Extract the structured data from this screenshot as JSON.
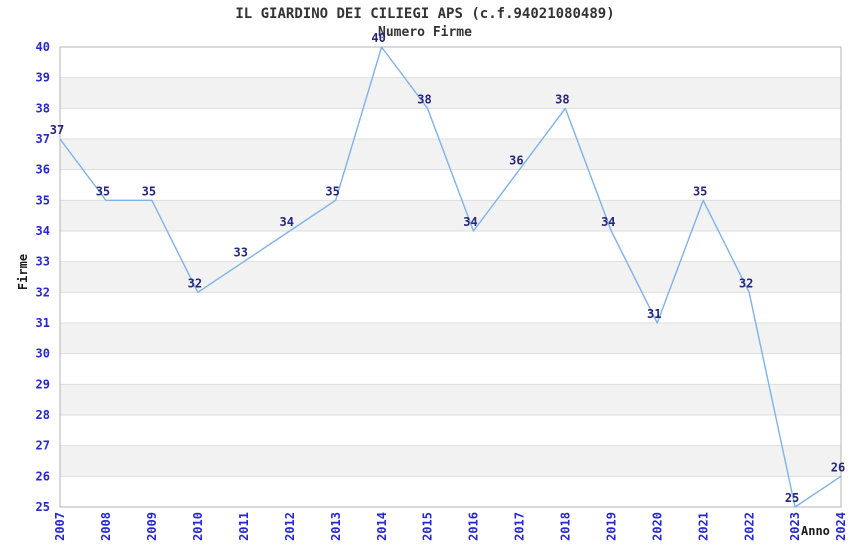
{
  "chart_data": {
    "type": "line",
    "title": "IL GIARDINO DEI CILIEGI APS (c.f.94021080489)",
    "subtitle": "Numero Firme",
    "xlabel": "Anno",
    "ylabel": "Firme",
    "x": [
      2007,
      2008,
      2009,
      2010,
      2011,
      2012,
      2013,
      2014,
      2015,
      2016,
      2017,
      2018,
      2019,
      2020,
      2021,
      2022,
      2023,
      2024
    ],
    "series": [
      {
        "name": "Numero Firme",
        "values": [
          37,
          35,
          35,
          32,
          33,
          34,
          35,
          40,
          38,
          34,
          36,
          38,
          34,
          31,
          35,
          32,
          25,
          26
        ]
      }
    ],
    "point_labels": [
      37,
      35,
      35,
      32,
      33,
      34,
      35,
      40,
      38,
      34,
      36,
      38,
      34,
      31,
      35,
      32,
      25,
      26
    ],
    "ylim": [
      25,
      40
    ],
    "ytick_step": 1,
    "grid": true,
    "banded_background": true,
    "legend": "none",
    "colors": {
      "line": "#7FB2E8",
      "band": "#F2F2F2",
      "grid": "#DEDEDE",
      "spine": "#B5B5B5",
      "tick_label": "#2727CE",
      "point_label": "#26267B",
      "title": "#333333",
      "axis_title": "#1A1A1A"
    }
  }
}
